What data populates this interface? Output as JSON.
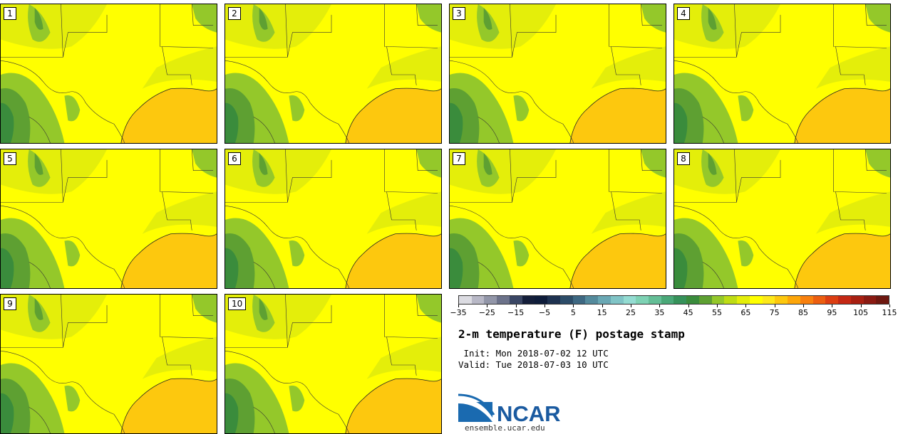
{
  "stamps": [
    {
      "label": "1"
    },
    {
      "label": "2"
    },
    {
      "label": "3"
    },
    {
      "label": "4"
    },
    {
      "label": "5"
    },
    {
      "label": "6"
    },
    {
      "label": "7"
    },
    {
      "label": "8"
    },
    {
      "label": "9"
    },
    {
      "label": "10"
    }
  ],
  "colorbar": {
    "colors": [
      "#dcdce2",
      "#b8b8c6",
      "#9296a8",
      "#6c728a",
      "#3a4664",
      "#141e3a",
      "#0e1c3a",
      "#1e3250",
      "#2c4c68",
      "#3e6882",
      "#548a9c",
      "#6aa8b4",
      "#80c4c6",
      "#94dcd2",
      "#7ed2b4",
      "#64be96",
      "#4aa878",
      "#36925a",
      "#3a8c3c",
      "#5ea032",
      "#94c82a",
      "#bedc14",
      "#e4ee0a",
      "#ffff00",
      "#fde81a",
      "#fdc80e",
      "#fda60a",
      "#f8800e",
      "#ec5e10",
      "#dc3e12",
      "#c42814",
      "#a82012",
      "#8a1a12",
      "#6e1810"
    ],
    "tick_values": [
      "−35",
      "−25",
      "−15",
      "−5",
      "5",
      "15",
      "25",
      "35",
      "45",
      "55",
      "65",
      "75",
      "85",
      "95",
      "105",
      "115"
    ],
    "min": -35,
    "max": 115
  },
  "title": "2-m temperature (F) postage stamp",
  "init_line": " Init: Mon 2018-07-02 12 UTC",
  "valid_line": "Valid: Tue 2018-07-03 10 UTC",
  "logo": {
    "text": "NCAR",
    "color": "#1a5aa0"
  },
  "website": "ensemble.ucar.edu"
}
